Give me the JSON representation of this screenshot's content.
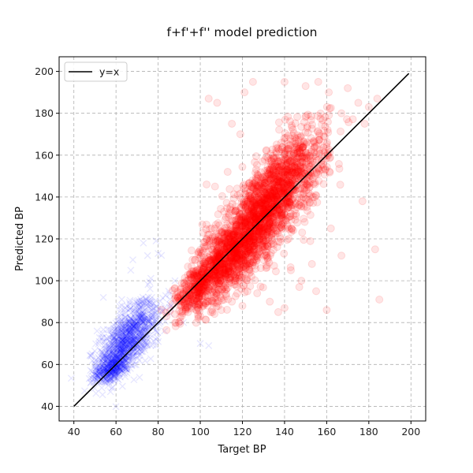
{
  "chart_data": {
    "type": "scatter",
    "title": "f+f'+f'' model prediction",
    "xlabel": "Target BP",
    "ylabel": "Predicted BP",
    "xlim": [
      33,
      207
    ],
    "ylim": [
      33,
      207
    ],
    "xticks": [
      40,
      60,
      80,
      100,
      120,
      140,
      160,
      180,
      200
    ],
    "yticks": [
      40,
      60,
      80,
      100,
      120,
      140,
      160,
      180,
      200
    ],
    "grid": true,
    "legend": {
      "position": "top-left",
      "entries": [
        "y=x"
      ]
    },
    "reference_line": {
      "name": "y=x",
      "x": [
        40,
        199
      ],
      "y": [
        40,
        199
      ],
      "color": "#000000"
    },
    "series": [
      {
        "marker": "x",
        "color": "#0000ff",
        "opacity": 0.1,
        "clusters": [
          {
            "center": [
              63,
              68
            ],
            "spread": [
              6,
              8
            ],
            "n": 700
          },
          {
            "center": [
              70,
              78
            ],
            "spread": [
              7,
              9
            ],
            "n": 350
          },
          {
            "center": [
              58,
              58
            ],
            "spread": [
              4,
              3
            ],
            "n": 250
          }
        ],
        "points": [
          [
            73,
            118
          ],
          [
            79,
            119
          ],
          [
            75,
            112
          ],
          [
            68,
            110
          ],
          [
            88,
            100
          ],
          [
            85,
            95
          ],
          [
            54,
            92
          ],
          [
            51,
            76
          ],
          [
            50,
            60
          ],
          [
            62,
            54
          ],
          [
            96,
            88
          ],
          [
            92,
            80
          ],
          [
            83,
            76
          ],
          [
            100,
            70
          ],
          [
            104,
            69
          ],
          [
            67,
            105
          ],
          [
            80,
            113
          ]
        ]
      },
      {
        "marker": "o",
        "color": "#ff0000",
        "opacity": 0.1,
        "clusters": [
          {
            "center": [
              112,
              110
            ],
            "spread": [
              8,
              10
            ],
            "n": 900
          },
          {
            "center": [
              128,
              130
            ],
            "spread": [
              9,
              12
            ],
            "n": 1100
          },
          {
            "center": [
              143,
              150
            ],
            "spread": [
              9,
              13
            ],
            "n": 700
          },
          {
            "center": [
              97,
              95
            ],
            "spread": [
              5,
              6
            ],
            "n": 250
          }
        ],
        "points": [
          [
            121,
            190
          ],
          [
            125,
            195
          ],
          [
            140,
            195
          ],
          [
            150,
            193
          ],
          [
            156,
            195
          ],
          [
            161,
            190
          ],
          [
            170,
            192
          ],
          [
            184,
            187
          ],
          [
            180,
            183
          ],
          [
            175,
            185
          ],
          [
            167,
            180
          ],
          [
            178,
            175
          ],
          [
            185,
            91
          ],
          [
            167,
            112
          ],
          [
            162,
            125
          ],
          [
            153,
            108
          ],
          [
            147,
            97
          ],
          [
            143,
            105
          ],
          [
            148,
            100
          ],
          [
            133,
            90
          ],
          [
            127,
            94
          ],
          [
            120,
            88
          ],
          [
            115,
            90
          ],
          [
            110,
            86
          ],
          [
            105,
            85
          ],
          [
            99,
            82
          ],
          [
            91,
            85
          ],
          [
            88,
            84
          ],
          [
            115,
            175
          ],
          [
            108,
            185
          ],
          [
            104,
            187
          ],
          [
            119,
            170
          ],
          [
            113,
            152
          ],
          [
            103,
            146
          ],
          [
            107,
            145
          ],
          [
            177,
            138
          ],
          [
            183,
            115
          ],
          [
            160,
            86
          ],
          [
            155,
            95
          ],
          [
            140,
            87
          ],
          [
            137,
            85
          ]
        ]
      }
    ]
  }
}
